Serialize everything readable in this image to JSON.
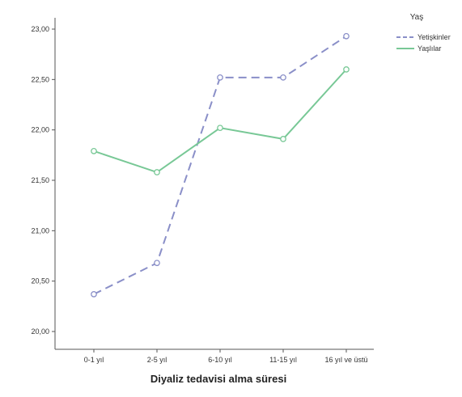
{
  "chart_data": {
    "type": "line",
    "categories": [
      "0-1 yıl",
      "2-5 yıl",
      "6-10 yıl",
      "11-15 yıl",
      "16 yıl ve üstü"
    ],
    "series": [
      {
        "name": "Yetişkinler",
        "values": [
          20.37,
          20.68,
          22.52,
          22.52,
          22.93
        ],
        "color": "#8a8fc8",
        "style": "dashed"
      },
      {
        "name": "Yaşlılar",
        "values": [
          21.79,
          21.58,
          22.02,
          21.91,
          22.6
        ],
        "color": "#78c896",
        "style": "solid"
      }
    ],
    "yticks": [
      "20,00",
      "20,50",
      "21,00",
      "21,50",
      "22,00",
      "22,50",
      "23,00"
    ],
    "ylim": [
      20.0,
      23.0
    ],
    "xlabel": "Diyaliz tedavisi alma süresi",
    "ylabel": "",
    "legend_title": "Yaş",
    "legend_placement": "top-right",
    "grid": false
  }
}
